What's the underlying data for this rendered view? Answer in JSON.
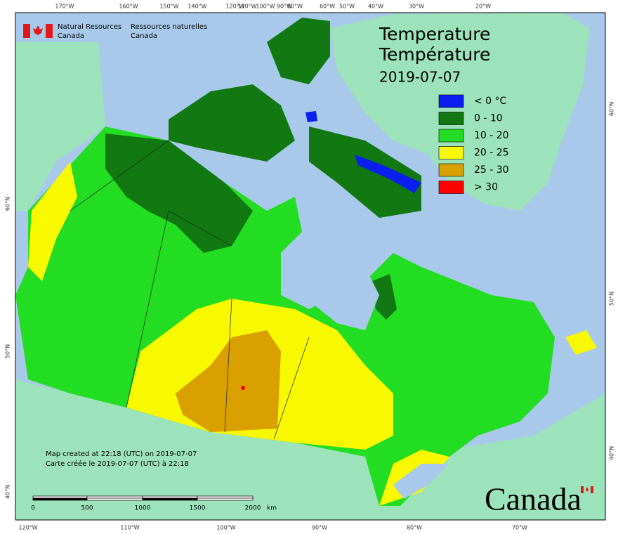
{
  "header": {
    "department_en": [
      "Natural Resources",
      "Canada"
    ],
    "department_fr": [
      "Ressources naturelles",
      "Canada"
    ],
    "title": [
      "Temperature",
      "Température"
    ],
    "date": "2019-07-07"
  },
  "legend": [
    {
      "label": "< 0 °C",
      "color": "#0a1ef0"
    },
    {
      "label": "0 - 10",
      "color": "#127812"
    },
    {
      "label": "10 - 20",
      "color": "#22dd22"
    },
    {
      "label": "20 - 25",
      "color": "#f8f800"
    },
    {
      "label": "25 - 30",
      "color": "#d9a000"
    },
    {
      "label": "> 30",
      "color": "#ff0000"
    }
  ],
  "notes": [
    "Map created at 22:18 (UTC) on 2019-07-07",
    "Carte créée le 2019-07-07 (UTC) à 22:18"
  ],
  "scale": {
    "labels": [
      "0",
      "500",
      "1000",
      "1500",
      "2000"
    ],
    "unit": "km"
  },
  "graticule": {
    "top": [
      "170°W",
      "160°W",
      "150°W",
      "140°W",
      "120°W",
      "110°W",
      "100°W",
      "90°W",
      "80°W",
      "60°W",
      "50°W",
      "40°W",
      "30°W",
      "20°W"
    ],
    "bottom": [
      "120°W",
      "110°W",
      "100°W",
      "90°W",
      "80°W",
      "70°W"
    ],
    "left": [
      "60°N",
      "50°N",
      "40°N"
    ],
    "right": [
      "60°N",
      "50°N",
      "40°N"
    ]
  },
  "wordmark": "Canada"
}
